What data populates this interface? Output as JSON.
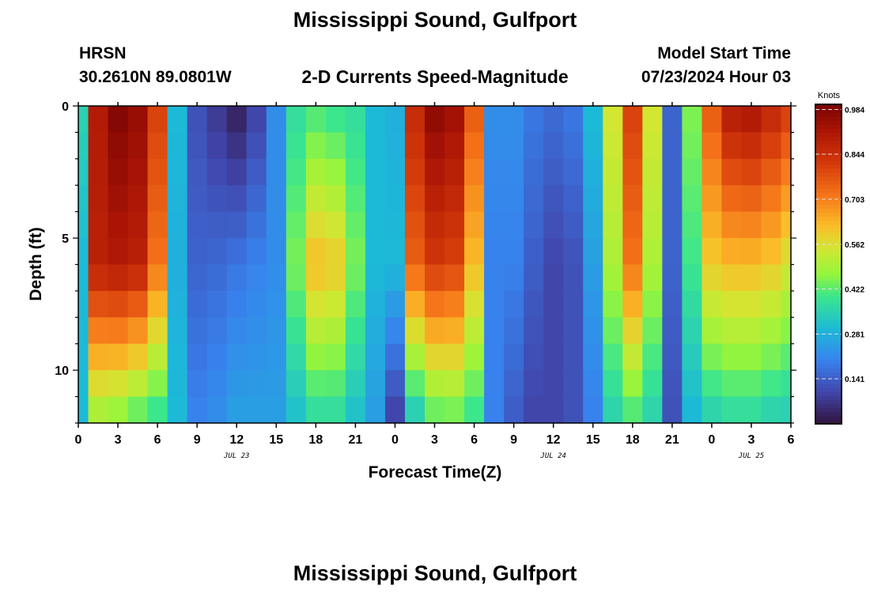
{
  "page": {
    "title": "Mississippi Sound, Gulfport",
    "station_id": "HRSN",
    "station_coords": "30.2610N  89.0801W",
    "subtitle": "2-D Currents Speed-Magnitude",
    "model_start_label": "Model Start Time",
    "model_start_value": "07/23/2024 Hour 03",
    "bottom_title": "Mississippi Sound, Gulfport"
  },
  "chart_data": {
    "type": "heatmap",
    "xlabel": "Forecast Time(Z)",
    "ylabel": "Depth (ft)",
    "xlim_hours": [
      0,
      54
    ],
    "ylim_ft": [
      0,
      12
    ],
    "x_tick_labels": [
      "0",
      "3",
      "6",
      "9",
      "12",
      "15",
      "18",
      "21",
      "0",
      "3",
      "6",
      "9",
      "12",
      "15",
      "18",
      "21",
      "0",
      "3",
      "6"
    ],
    "y_tick_labels": [
      "0",
      "5",
      "10"
    ],
    "date_labels": [
      {
        "label": "JUL 23",
        "hour": 12
      },
      {
        "label": "JUL 24",
        "hour": 36
      },
      {
        "label": "JUL 25",
        "hour": 51
      }
    ],
    "colorbar": {
      "unit": "Knots",
      "min": 0.0,
      "max": 1.0,
      "tick_labels": [
        "0.984",
        "0.844",
        "0.703",
        "0.562",
        "0.422",
        "0.281",
        "0.141"
      ],
      "tick_values": [
        0.984,
        0.844,
        0.703,
        0.562,
        0.422,
        0.281,
        0.141
      ]
    },
    "depth_rows_ft": [
      0.5,
      1.5,
      2.5,
      3.5,
      4.5,
      5.5,
      6.5,
      7.5,
      8.5,
      9.5,
      10.5,
      11.5
    ],
    "time_hours": [
      0,
      1.5,
      3,
      4.5,
      6,
      7.5,
      9,
      10.5,
      12,
      13.5,
      15,
      16.5,
      18,
      19.5,
      21,
      22.5,
      24,
      25.5,
      27,
      28.5,
      30,
      31.5,
      33,
      34.5,
      36,
      37.5,
      39,
      40.5,
      42,
      43.5,
      45,
      46.5,
      48,
      49.5,
      51,
      52.5,
      54
    ],
    "surface_speed_knots": [
      0.35,
      0.9,
      0.98,
      0.95,
      0.8,
      0.3,
      0.12,
      0.08,
      0.04,
      0.1,
      0.22,
      0.38,
      0.42,
      0.4,
      0.38,
      0.3,
      0.28,
      0.85,
      0.96,
      0.93,
      0.75,
      0.22,
      0.22,
      0.18,
      0.16,
      0.18,
      0.3,
      0.55,
      0.8,
      0.55,
      0.15,
      0.45,
      0.75,
      0.88,
      0.9,
      0.85,
      0.8
    ],
    "mid_speed_knots": [
      0.3,
      0.88,
      0.9,
      0.88,
      0.72,
      0.28,
      0.15,
      0.16,
      0.18,
      0.2,
      0.22,
      0.45,
      0.62,
      0.6,
      0.45,
      0.3,
      0.3,
      0.75,
      0.82,
      0.8,
      0.62,
      0.2,
      0.2,
      0.14,
      0.1,
      0.12,
      0.25,
      0.5,
      0.72,
      0.5,
      0.15,
      0.4,
      0.6,
      0.62,
      0.62,
      0.6,
      0.55
    ],
    "bottom_speed_knots": [
      0.3,
      0.5,
      0.48,
      0.44,
      0.4,
      0.3,
      0.2,
      0.22,
      0.25,
      0.25,
      0.25,
      0.32,
      0.38,
      0.38,
      0.32,
      0.25,
      0.1,
      0.35,
      0.44,
      0.45,
      0.4,
      0.2,
      0.14,
      0.1,
      0.1,
      0.12,
      0.2,
      0.36,
      0.42,
      0.36,
      0.12,
      0.3,
      0.36,
      0.38,
      0.38,
      0.36,
      0.35
    ]
  }
}
